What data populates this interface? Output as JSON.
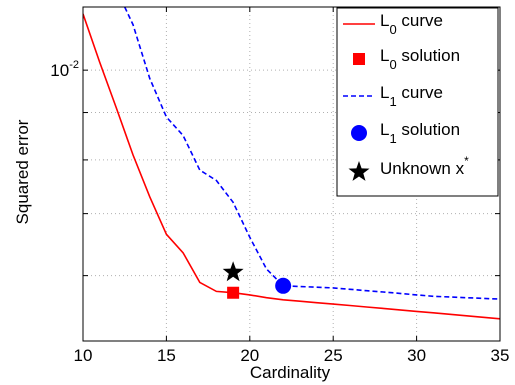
{
  "chart_data": {
    "type": "line",
    "title": "",
    "xlabel": "Cardinality",
    "ylabel": "Squared error",
    "x_ticks": [
      10,
      15,
      20,
      25,
      30,
      35
    ],
    "xlim": [
      10,
      35
    ],
    "y_scale": "log",
    "ylim": [
      0.0051,
      0.0117
    ],
    "y_ticks": [
      0.006,
      0.007,
      0.008,
      0.009,
      0.01
    ],
    "y_tick_labels": [
      "",
      "",
      "",
      "",
      "10^-2"
    ],
    "grid": true,
    "legend_position": "top-right",
    "series": [
      {
        "name": "L_0 curve",
        "kind": "line",
        "color": "#ff0000",
        "dash": "solid",
        "x": [
          10,
          11,
          12,
          13,
          14,
          15,
          16,
          17,
          18,
          19,
          20,
          21,
          22,
          23,
          24,
          25,
          26,
          27,
          28,
          29,
          30,
          31,
          32,
          33,
          34,
          35
        ],
        "y": [
          0.0115,
          0.0102,
          0.0091,
          0.0081,
          0.0073,
          0.00665,
          0.00635,
          0.0059,
          0.00577,
          0.00575,
          0.00572,
          0.00568,
          0.00565,
          0.00563,
          0.00561,
          0.00559,
          0.00557,
          0.00555,
          0.00553,
          0.00551,
          0.00549,
          0.00547,
          0.00545,
          0.00543,
          0.00541,
          0.00539
        ]
      },
      {
        "name": "L_0 solution",
        "kind": "marker",
        "marker": "square",
        "color": "#ff0000",
        "x": [
          19
        ],
        "y": [
          0.00575
        ]
      },
      {
        "name": "L_1 curve",
        "kind": "line",
        "color": "#0000ff",
        "dash": "dashed",
        "x": [
          12.5,
          13,
          14,
          15,
          16,
          17,
          18,
          19,
          20,
          21,
          22,
          23,
          24,
          25,
          26,
          27,
          28,
          29,
          30,
          31,
          32,
          33,
          34,
          35
        ],
        "y": [
          0.0117,
          0.0112,
          0.0098,
          0.0089,
          0.0085,
          0.0078,
          0.0076,
          0.0072,
          0.0066,
          0.0061,
          0.00585,
          0.00584,
          0.00583,
          0.00582,
          0.0058,
          0.00578,
          0.00576,
          0.00574,
          0.00572,
          0.0057,
          0.00569,
          0.00568,
          0.00567,
          0.00566
        ]
      },
      {
        "name": "L_1 solution",
        "kind": "marker",
        "marker": "circle",
        "color": "#0000ff",
        "x": [
          22
        ],
        "y": [
          0.00585
        ]
      },
      {
        "name": "Unknown x*",
        "kind": "marker",
        "marker": "star",
        "color": "#000000",
        "x": [
          19
        ],
        "y": [
          0.00605
        ]
      }
    ],
    "legend": [
      {
        "base": "L",
        "sub": "0",
        "sup": "",
        "rest": " curve",
        "symbol": "red-solid-line"
      },
      {
        "base": "L",
        "sub": "0",
        "sup": "",
        "rest": " solution",
        "symbol": "red-square"
      },
      {
        "base": "L",
        "sub": "1",
        "sup": "",
        "rest": " curve",
        "symbol": "blue-dashed-line"
      },
      {
        "base": "L",
        "sub": "1",
        "sup": "",
        "rest": " solution",
        "symbol": "blue-circle"
      },
      {
        "base": "Unknown x",
        "sub": "",
        "sup": "*",
        "rest": "",
        "symbol": "black-star"
      }
    ]
  }
}
